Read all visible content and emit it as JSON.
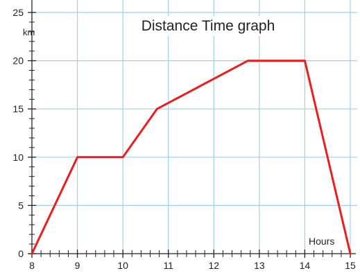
{
  "chart_data": {
    "type": "line",
    "title": "Distance Time graph",
    "xlabel": "Hours",
    "ylabel": "km",
    "xlim": [
      8,
      15
    ],
    "ylim": [
      0,
      25
    ],
    "x_ticks": [
      8,
      9,
      10,
      11,
      12,
      13,
      14,
      15
    ],
    "y_ticks": [
      0,
      5,
      10,
      15,
      20,
      25
    ],
    "x_minor_step": 0.2,
    "y_minor_step": 1,
    "grid": true,
    "colors": {
      "line": "#ee1c1c",
      "grid": "#9fd0ec",
      "axis": "#222222"
    },
    "series": [
      {
        "x": [
          8,
          9,
          10,
          10.75,
          12.75,
          14,
          15
        ],
        "y": [
          0,
          10,
          10,
          15,
          20,
          20,
          0
        ]
      }
    ]
  }
}
